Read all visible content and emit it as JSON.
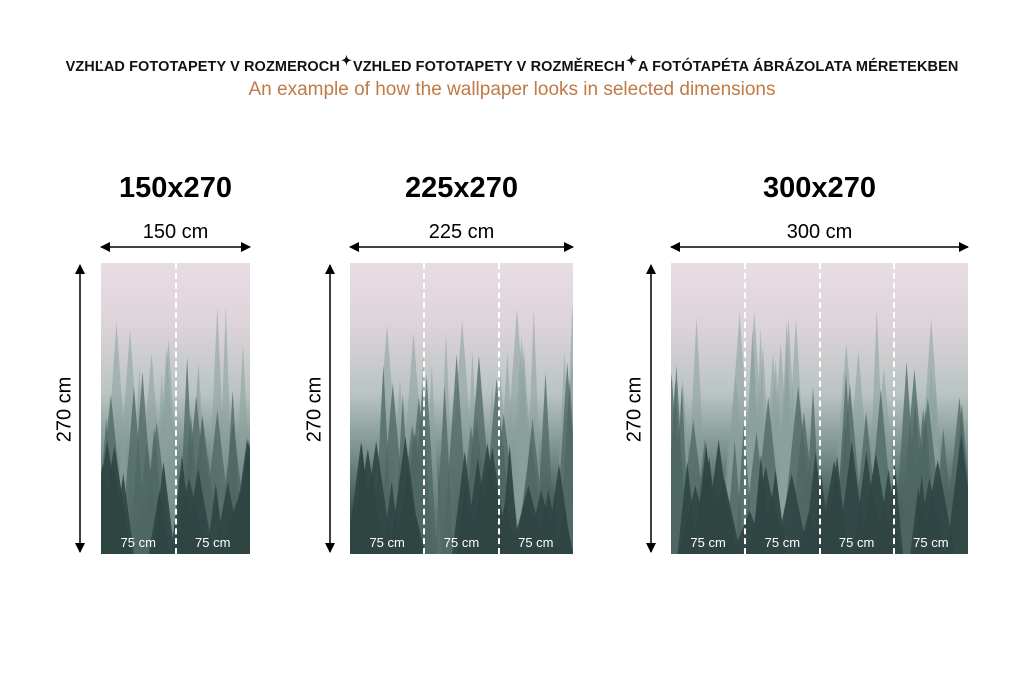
{
  "header": {
    "title_parts": [
      "VZHĽAD FOTOTAPETY V ROZMEROCH",
      "VZHLED FOTOTAPETY V ROZMĚRECH",
      "A FOTÓTAPÉTA ÁBRÁZOLATA MÉRETEKBEN"
    ],
    "separator_icon": "sparkle-icon",
    "subtitle": "An example of how the wallpaper looks in selected dimensions"
  },
  "colors": {
    "subtitle": "#c07a45",
    "text": "#000000"
  },
  "variants": [
    {
      "title": "150x270",
      "width_label": "150 cm",
      "height_label": "270 cm",
      "panels": [
        "75 cm",
        "75 cm"
      ]
    },
    {
      "title": "225x270",
      "width_label": "225 cm",
      "height_label": "270 cm",
      "panels": [
        "75 cm",
        "75 cm",
        "75 cm"
      ]
    },
    {
      "title": "300x270",
      "width_label": "300 cm",
      "height_label": "270 cm",
      "panels": [
        "75 cm",
        "75 cm",
        "75 cm",
        "75 cm"
      ]
    }
  ]
}
